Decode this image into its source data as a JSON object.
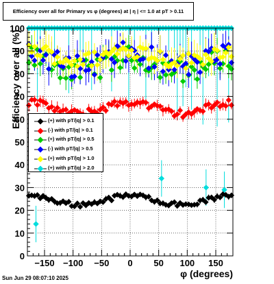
{
  "title": "Efficiency over all for Primary vs φ (degrees) at |  η  | <= 1.0 at pT > 0.11",
  "timestamp": "Sun Jun 29 08:07:10 2025",
  "chart_data": {
    "type": "scatter",
    "title": "Efficiency over all for Primary vs φ (degrees) at |  η  | <= 1.0 at pT > 0.11",
    "xlabel": "φ (degrees)",
    "ylabel": "Efficiency over all (%)",
    "xlim": [
      -180,
      180
    ],
    "ylim": [
      0,
      100
    ],
    "x_ticks": [
      -150,
      -100,
      -50,
      0,
      50,
      100,
      150
    ],
    "y_ticks": [
      0,
      10,
      20,
      30,
      40,
      50,
      60,
      70,
      80,
      90,
      100
    ],
    "grid": true,
    "legend_position": "left-middle",
    "series": [
      {
        "name": "(+) with pT/|q| > 0.1",
        "color": "#000000",
        "center": 24.5,
        "amp": 2.0,
        "spread": 1.0,
        "errlo": 1.0,
        "errhi": 1.0
      },
      {
        "name": "(-) with pT/|q| > 0.1",
        "color": "#ff0000",
        "center": 65.0,
        "amp": 2.5,
        "spread": 1.6,
        "errlo": 2.0,
        "errhi": 2.0
      },
      {
        "name": "(+) with pT/|q| > 0.5",
        "color": "#00cc00",
        "center": 84.0,
        "amp": 3.0,
        "spread": 5.0,
        "errlo": 4.0,
        "errhi": 4.0
      },
      {
        "name": "(-) with pT/|q| > 0.5",
        "color": "#0000ff",
        "center": 86.0,
        "amp": 3.0,
        "spread": 5.0,
        "errlo": 5.0,
        "errhi": 5.0
      },
      {
        "name": "(+) with pT/|q| > 1.0",
        "color": "#ffff00",
        "center": 88.0,
        "amp": 2.5,
        "spread": 3.5,
        "errlo": 5.0,
        "errhi": 5.0
      },
      {
        "name": "(+) with pT/|q| > 2.0",
        "color": "#00dddd",
        "center": 100.0,
        "amp": 0.0,
        "spread": 0.0,
        "errlo": 20.0,
        "errhi": 0.0
      }
    ],
    "annotations": {
      "cyan_outliers": [
        [
          -165,
          14
        ],
        [
          55,
          34
        ],
        [
          133,
          30
        ],
        [
          165,
          29
        ]
      ]
    },
    "points_per_series": 72
  }
}
